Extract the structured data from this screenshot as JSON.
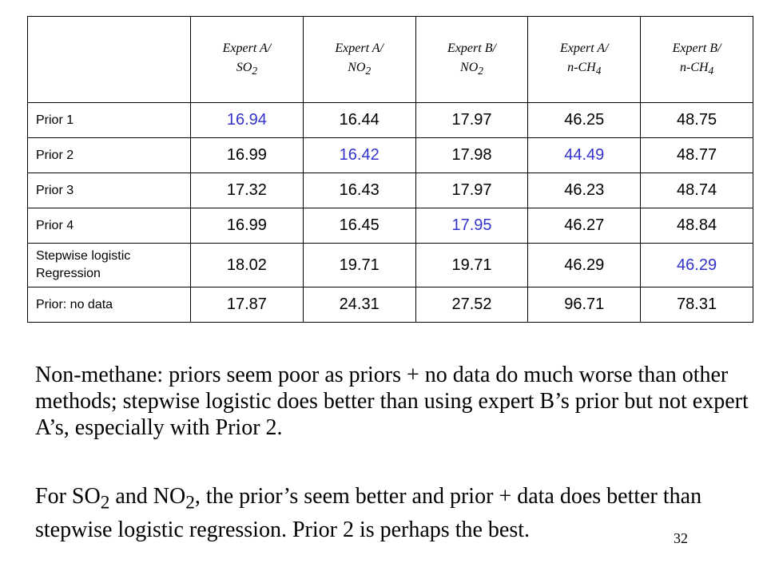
{
  "table": {
    "headers": [
      "",
      {
        "line1": "Expert A/",
        "line2": "SO",
        "sub": "2"
      },
      {
        "line1": "Expert A/",
        "line2": "NO",
        "sub": "2"
      },
      {
        "line1": "Expert B/",
        "line2": "NO",
        "sub": "2"
      },
      {
        "line1": "Expert A/",
        "line2": "n-CH",
        "sub": "4"
      },
      {
        "line1": "Expert B/",
        "line2": "n-CH",
        "sub": "4"
      }
    ],
    "rows": [
      {
        "label": "Prior 1",
        "values": [
          "16.94",
          "16.44",
          "17.97",
          "46.25",
          "48.75"
        ],
        "highlight": [
          0
        ]
      },
      {
        "label": "Prior 2",
        "values": [
          "16.99",
          "16.42",
          "17.98",
          "44.49",
          "48.77"
        ],
        "highlight": [
          1,
          3
        ]
      },
      {
        "label": "Prior 3",
        "values": [
          "17.32",
          "16.43",
          "17.97",
          "46.23",
          "48.74"
        ],
        "highlight": []
      },
      {
        "label": "Prior 4",
        "values": [
          "16.99",
          "16.45",
          "17.95",
          "46.27",
          "48.84"
        ],
        "highlight": [
          2
        ]
      },
      {
        "label": "Stepwise logistic Regression",
        "values": [
          "18.02",
          "19.71",
          "19.71",
          "46.29",
          "46.29"
        ],
        "highlight": [
          4
        ]
      },
      {
        "label": "Prior: no data",
        "values": [
          "17.87",
          "24.31",
          "27.52",
          "96.71",
          "78.31"
        ],
        "highlight": []
      }
    ],
    "highlight_color": "#3333cc"
  },
  "notes": {
    "p1": "Non-methane:  priors seem poor as priors + no data do much worse than other methods; stepwise logistic does better than using expert B’s prior but not expert A’s, especially with Prior 2.",
    "p2_a": "For SO",
    "p2_sub1": "2",
    "p2_b": " and NO",
    "p2_sub2": "2",
    "p2_c": ", the prior’s seem better and prior + data does better than stepwise logistic regression.  Prior 2 is perhaps the best."
  },
  "page_number": "32"
}
